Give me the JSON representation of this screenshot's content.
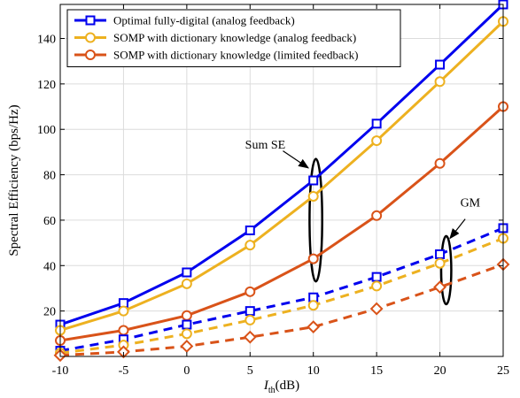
{
  "chart_data": {
    "type": "line",
    "xlabel_main": "I",
    "xlabel_sub": "th",
    "xlabel_unit": "(dB)",
    "ylabel": "Spectral Efficiency (bps/Hz)",
    "xlim": [
      -10,
      25
    ],
    "ylim": [
      0,
      155
    ],
    "xticks": [
      -10,
      -5,
      0,
      5,
      10,
      15,
      20,
      25
    ],
    "yticks": [
      20,
      40,
      60,
      80,
      100,
      120,
      140
    ],
    "x": [
      -10,
      -5,
      0,
      5,
      10,
      15,
      20,
      25
    ],
    "grid": true,
    "legend_position": "top-left",
    "series": [
      {
        "name": "Optimal fully-digital (analog feedback)",
        "group": "Sum SE",
        "color": "#0000ee",
        "marker": "square",
        "dash": "solid",
        "values": [
          14,
          23.5,
          37,
          55.5,
          77.5,
          102.5,
          128.5,
          155
        ]
      },
      {
        "name": "SOMP with dictionary knowledge (analog feedback)",
        "group": "Sum SE",
        "color": "#edb120",
        "marker": "circle",
        "dash": "solid",
        "values": [
          11.5,
          20,
          32,
          49,
          70.5,
          95,
          121,
          147.5
        ]
      },
      {
        "name": "SOMP with dictionary knowledge (limited feedback)",
        "group": "Sum SE",
        "color": "#d95319",
        "marker": "circle",
        "dash": "solid",
        "values": [
          7,
          11.5,
          18,
          28.5,
          43,
          62,
          85,
          110
        ]
      },
      {
        "name": "",
        "group": "GM",
        "color": "#0000ee",
        "marker": "square",
        "dash": "dashed",
        "values": [
          2.5,
          7.5,
          14,
          20,
          26,
          35,
          45,
          56.5
        ]
      },
      {
        "name": "",
        "group": "GM",
        "color": "#edb120",
        "marker": "circle",
        "dash": "dashed",
        "values": [
          1.5,
          5,
          10,
          16,
          22.5,
          31,
          41,
          52
        ]
      },
      {
        "name": "",
        "group": "GM",
        "color": "#d95319",
        "marker": "diamond",
        "dash": "dashed",
        "values": [
          0.5,
          2,
          4.5,
          8.5,
          13,
          21,
          30.5,
          40.5
        ]
      }
    ],
    "annotations": [
      {
        "text": "Sum SE",
        "ellipse": {
          "cx": 10.2,
          "cy": 60,
          "rx": 0.5,
          "ry": 27
        },
        "text_pos": {
          "x": 6.2,
          "y": 91.5
        },
        "arrow_from": {
          "x": 7.6,
          "y": 90.5
        },
        "arrow_to": {
          "x": 9.6,
          "y": 83
        }
      },
      {
        "text": "GM",
        "ellipse": {
          "cx": 20.5,
          "cy": 38,
          "rx": 0.4,
          "ry": 15
        },
        "text_pos": {
          "x": 22.4,
          "y": 66
        },
        "arrow_from": {
          "x": 22,
          "y": 60.5
        },
        "arrow_to": {
          "x": 20.8,
          "y": 52
        }
      }
    ]
  }
}
